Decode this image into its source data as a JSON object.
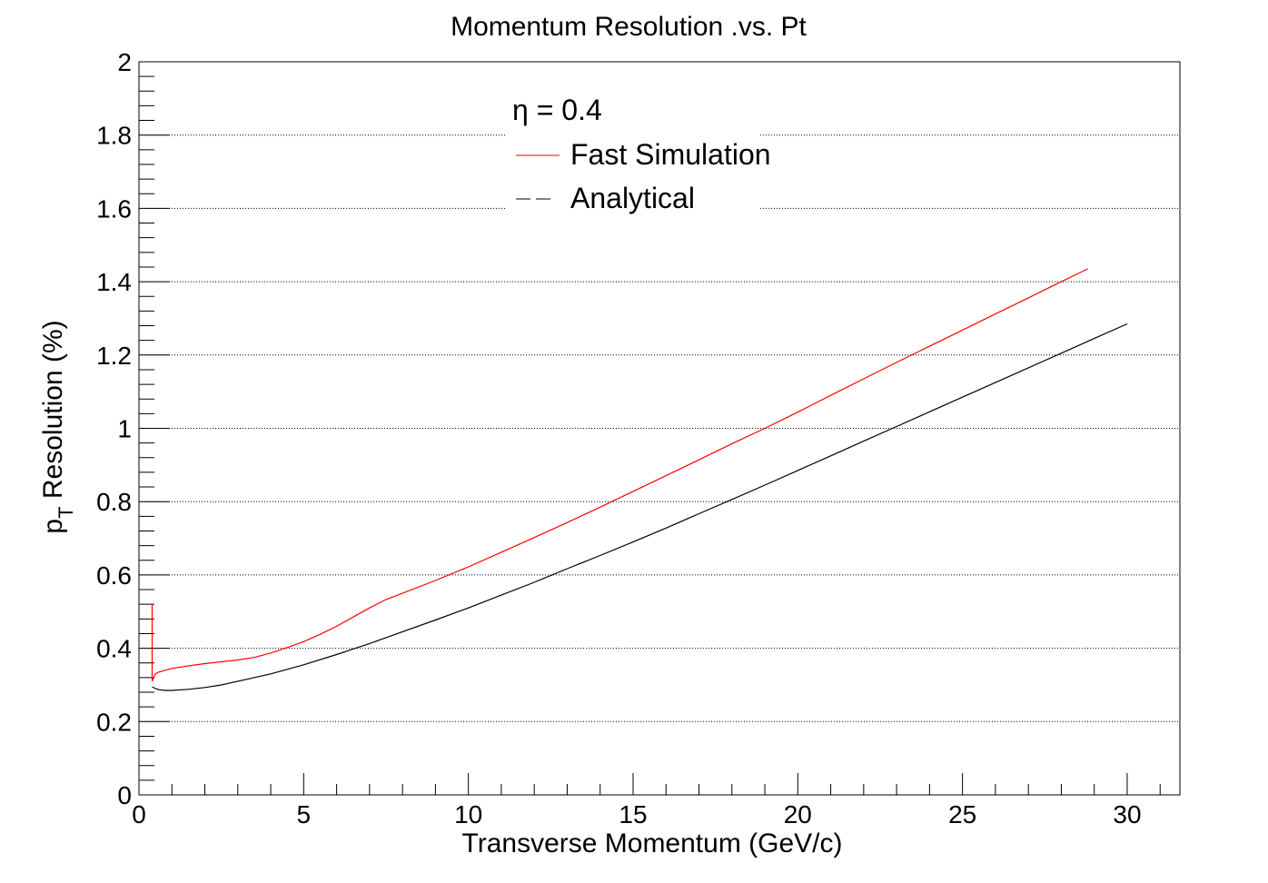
{
  "chart_data": {
    "type": "line",
    "title": "Momentum Resolution .vs. Pt",
    "xlabel": "Transverse Momentum (GeV/c)",
    "ylabel_main": "p",
    "ylabel_sub": "T",
    "ylabel_rest": " Resolution (%)",
    "xlim": [
      0,
      31.6
    ],
    "ylim": [
      0,
      2
    ],
    "x_ticks": [
      0,
      5,
      10,
      15,
      20,
      25,
      30
    ],
    "y_ticks": [
      0,
      0.2,
      0.4,
      0.6,
      0.8,
      1,
      1.2,
      1.4,
      1.6,
      1.8,
      2
    ],
    "x_tick_labels": [
      "0",
      "5",
      "10",
      "15",
      "20",
      "25",
      "30"
    ],
    "y_tick_labels": [
      "0",
      "0.2",
      "0.4",
      "0.6",
      "0.8",
      "1",
      "1.2",
      "1.4",
      "1.6",
      "1.8",
      "2"
    ],
    "grid": "horizontal",
    "legend_header": "η = 0.4",
    "legend_placement": "top-center",
    "series": [
      {
        "name": "Fast Simulation",
        "color": "#ff0000",
        "x": [
          0.4,
          0.4,
          0.45,
          0.5,
          0.6,
          0.8,
          1.0,
          1.5,
          2.0,
          2.5,
          3.0,
          3.5,
          4.0,
          4.5,
          5.0,
          5.5,
          6.0,
          6.5,
          7.0,
          7.5,
          8.0,
          9.0,
          10.0,
          11.0,
          12.0,
          13.0,
          14.0,
          15.0,
          16.0,
          17.0,
          18.0,
          19.0,
          20.0,
          21.0,
          22.0,
          23.0,
          24.0,
          25.0,
          26.0,
          27.0,
          28.0,
          28.8
        ],
        "y": [
          0.52,
          0.31,
          0.32,
          0.33,
          0.335,
          0.34,
          0.345,
          0.352,
          0.358,
          0.363,
          0.368,
          0.375,
          0.387,
          0.402,
          0.418,
          0.438,
          0.46,
          0.485,
          0.51,
          0.533,
          0.55,
          0.585,
          0.622,
          0.662,
          0.702,
          0.743,
          0.785,
          0.828,
          0.871,
          0.914,
          0.958,
          1.0,
          1.044,
          1.09,
          1.135,
          1.18,
          1.224,
          1.268,
          1.312,
          1.356,
          1.4,
          1.435
        ]
      },
      {
        "name": "Analytical",
        "color": "#000000",
        "x": [
          0.4,
          0.5,
          0.6,
          0.8,
          1.0,
          1.5,
          2.0,
          2.5,
          3.0,
          4.0,
          5.0,
          6.0,
          7.0,
          8.0,
          9.0,
          10.0,
          11.0,
          12.0,
          13.0,
          14.0,
          15.0,
          16.0,
          17.0,
          18.0,
          19.0,
          20.0,
          21.0,
          22.0,
          23.0,
          24.0,
          25.0,
          26.0,
          27.0,
          28.0,
          29.0,
          30.0
        ],
        "y": [
          0.295,
          0.29,
          0.287,
          0.285,
          0.285,
          0.288,
          0.293,
          0.3,
          0.31,
          0.33,
          0.355,
          0.383,
          0.413,
          0.445,
          0.477,
          0.51,
          0.545,
          0.58,
          0.617,
          0.653,
          0.69,
          0.728,
          0.767,
          0.806,
          0.845,
          0.885,
          0.925,
          0.965,
          1.005,
          1.045,
          1.085,
          1.125,
          1.165,
          1.205,
          1.245,
          1.285
        ]
      }
    ]
  }
}
